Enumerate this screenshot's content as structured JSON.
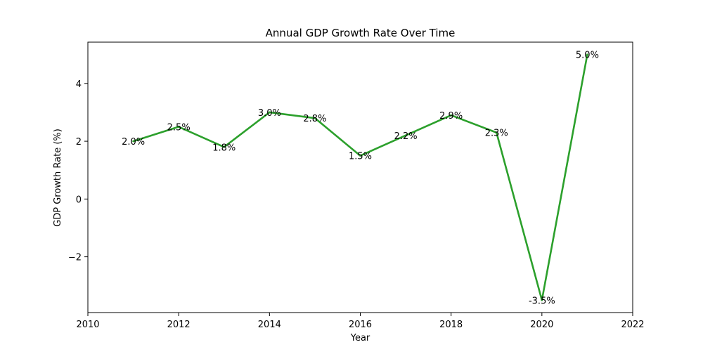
{
  "chart_data": {
    "type": "line",
    "title": "Annual GDP Growth Rate Over Time",
    "xlabel": "Year",
    "ylabel": "GDP Growth Rate (%)",
    "xlim": [
      2010,
      2022
    ],
    "ylim": [
      -3.93,
      5.43
    ],
    "x_ticks": [
      "2010",
      "2012",
      "2014",
      "2016",
      "2018",
      "2020",
      "2022"
    ],
    "y_ticks": [
      "−2",
      "0",
      "2",
      "4"
    ],
    "x_tick_values": [
      2010,
      2012,
      2014,
      2016,
      2018,
      2020,
      2022
    ],
    "y_tick_values": [
      -2,
      0,
      2,
      4
    ],
    "grid": false,
    "series": [
      {
        "color": "#2ca02c",
        "x": [
          2011,
          2012,
          2013,
          2014,
          2015,
          2016,
          2017,
          2018,
          2019,
          2020,
          2021
        ],
        "values": [
          2.0,
          2.5,
          1.8,
          3.0,
          2.8,
          1.5,
          2.2,
          2.9,
          2.3,
          -3.5,
          5.0
        ],
        "labels": [
          "2.0%",
          "2.5%",
          "1.8%",
          "3.0%",
          "2.8%",
          "1.5%",
          "2.2%",
          "2.9%",
          "2.3%",
          "-3.5%",
          "5.0%"
        ]
      }
    ]
  }
}
